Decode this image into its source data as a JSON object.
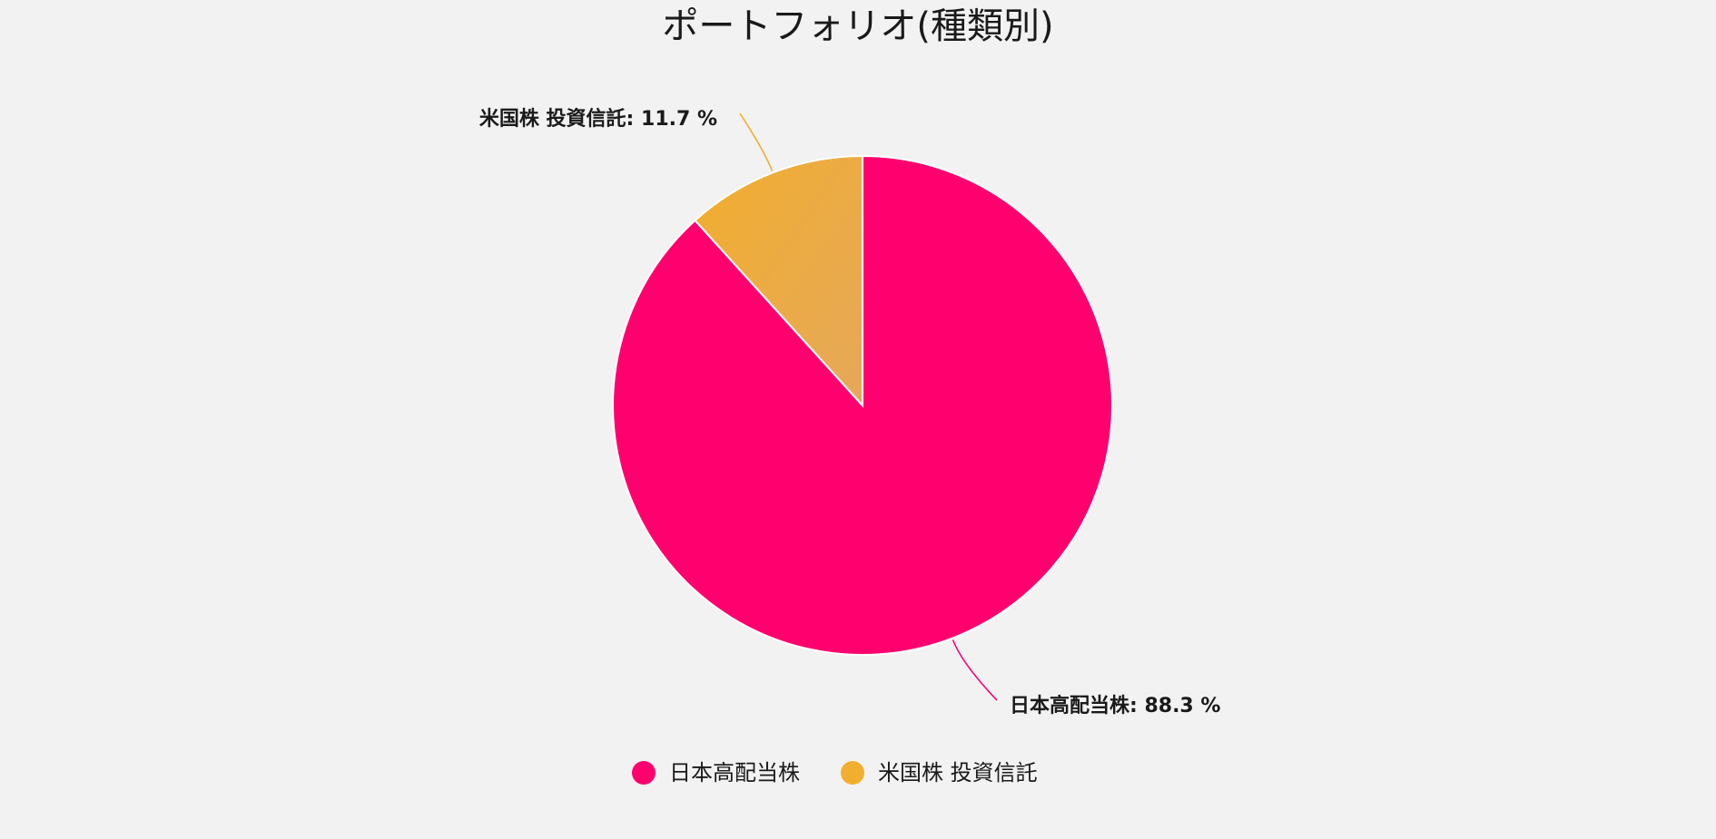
{
  "chart_data": {
    "type": "pie",
    "title": "ポートフォリオ(種類別)",
    "slices": [
      {
        "name": "日本高配当株",
        "value": 88.3,
        "label": "日本高配当株: 88.3 %",
        "color": "#ff006e"
      },
      {
        "name": "米国株 投資信託",
        "value": 11.7,
        "label": "米国株 投資信託: 11.7 %",
        "color": "#f2ae2e"
      }
    ],
    "legend": {
      "position": "bottom",
      "items": [
        "日本高配当株",
        "米国株 投資信託"
      ]
    }
  }
}
